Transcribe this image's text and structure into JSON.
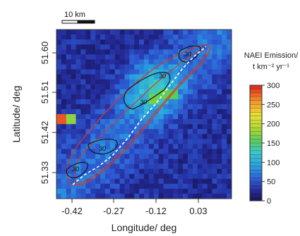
{
  "figure": {
    "scale_bar_label": "10 km",
    "xlabel": "Longitude/ deg",
    "ylabel": "Latitude/ deg",
    "contour_label": "30",
    "colorbar_title_line1": "NAEI Emission/",
    "colorbar_title_line2": "t km⁻² yr⁻¹"
  },
  "chart_data": {
    "type": "heatmap",
    "title": "",
    "xlabel": "Longitude/ deg",
    "ylabel": "Latitude/ deg",
    "x_ticks": [
      "-0.42",
      "-0.27",
      "-0.12",
      "0.03"
    ],
    "y_ticks": [
      "51.33",
      "51.42",
      "51.51",
      "51.60"
    ],
    "xlim": [
      -0.5,
      0.1
    ],
    "ylim": [
      51.28,
      51.66
    ],
    "colorbar": {
      "label": "NAEI Emission/ t km-2 yr-1",
      "range": [
        0,
        300
      ],
      "ticks": [
        "0",
        "50",
        "100",
        "150",
        "200",
        "250",
        "300"
      ]
    },
    "contour_level": 30,
    "hotspots": [
      {
        "lon": -0.48,
        "lat": 51.46,
        "value": 280
      },
      {
        "lon": -0.445,
        "lat": 51.46,
        "value": 175
      },
      {
        "lon": -0.16,
        "lat": 51.507,
        "value": 165
      },
      {
        "lon": -0.13,
        "lat": 51.513,
        "value": 160
      },
      {
        "lon": -0.1,
        "lat": 51.517,
        "value": 155
      }
    ]
  },
  "colors": {
    "background_field": "#2a3a9a",
    "plume_outline": "#d23a2a",
    "contour": "#111111",
    "track": "#ffffff"
  }
}
